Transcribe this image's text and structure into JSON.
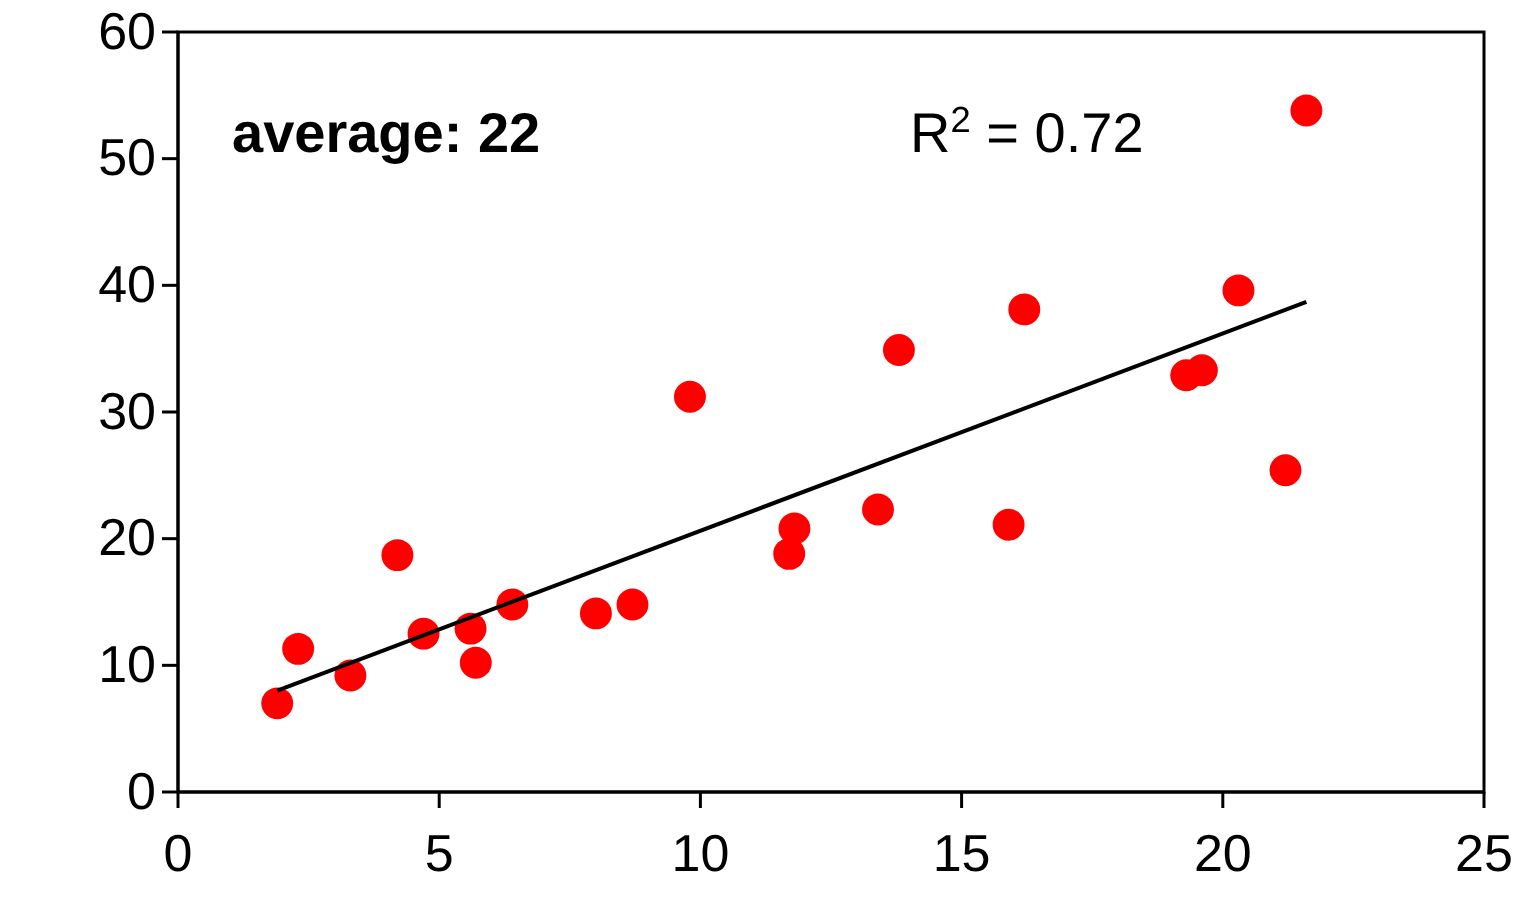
{
  "chart_data": {
    "type": "scatter",
    "xlim": [
      0,
      25
    ],
    "xticks": [
      0,
      5,
      10,
      15,
      20,
      25
    ],
    "ylim": [
      0,
      60
    ],
    "yticks": [
      0,
      10,
      20,
      30,
      40,
      50,
      60
    ],
    "annotations": [
      "average: 22",
      "R$^{2}$ = 0.72"
    ],
    "series": [
      {
        "marker": "circle",
        "color": "#ff0000",
        "x": [
          1.9,
          2.3,
          3.3,
          4.2,
          4.7,
          5.6,
          5.7,
          6.4,
          8.0,
          8.7,
          9.8,
          11.7,
          11.8,
          13.4,
          13.8,
          15.9,
          16.2,
          19.3,
          19.6,
          20.3,
          21.2,
          21.6
        ],
        "values": [
          7,
          11.3,
          9.2,
          18.7,
          12.5,
          12.9,
          10.2,
          14.8,
          14.1,
          14.8,
          31.2,
          18.8,
          20.8,
          22.3,
          34.9,
          21.1,
          38.1,
          32.9,
          33.3,
          39.6,
          25.4,
          53.8
        ]
      },
      {
        "type": "line",
        "marker": "none",
        "color": "#000000",
        "x": [
          1.9,
          21.6
        ],
        "values": [
          8.0,
          38.7
        ]
      }
    ]
  }
}
